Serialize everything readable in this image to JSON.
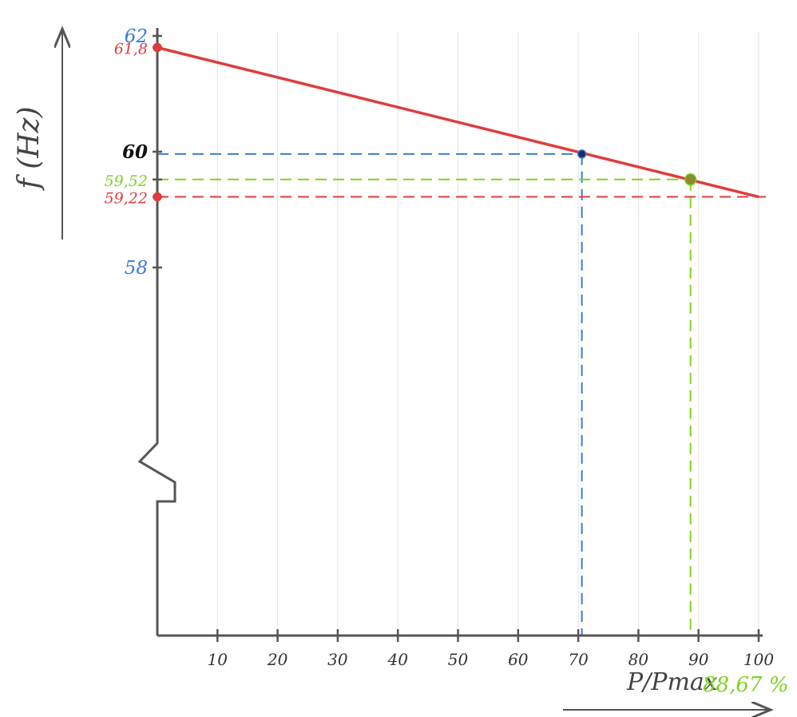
{
  "colors": {
    "axis": "#555555",
    "grid": "#e4e4e4",
    "line": "#e8453c",
    "blue": "#3a7bd5",
    "green": "#7ed321",
    "red": "#e03c3c",
    "black": "#111111"
  },
  "chart_data": {
    "type": "line",
    "ylabel": "f (Hz)",
    "xlabel": "P/Pmax",
    "xlim": [
      0,
      100
    ],
    "ylim": [
      58,
      62
    ],
    "y_axis_break": true,
    "x_ticks": [
      10,
      20,
      30,
      40,
      50,
      60,
      70,
      80,
      90,
      100
    ],
    "y_tick_labels": [
      {
        "value": 62,
        "label": "62",
        "color": "blue"
      },
      {
        "value": 61.8,
        "label": "61,8",
        "color": "red"
      },
      {
        "value": 60,
        "label": "60",
        "color": "black"
      },
      {
        "value": 59.52,
        "label": "59,52",
        "color": "green"
      },
      {
        "value": 59.22,
        "label": "59,22",
        "color": "red"
      },
      {
        "value": 58,
        "label": "58",
        "color": "blue"
      }
    ],
    "series": [
      {
        "values": [
          {
            "x": 0,
            "y": 61.8
          },
          {
            "x": 100,
            "y": 59.22
          }
        ],
        "color": "red"
      }
    ],
    "markers": [
      {
        "x": 70.6,
        "y": 59.96,
        "color": "blue",
        "guide": true
      },
      {
        "x": 88.67,
        "y": 59.52,
        "color": "green",
        "guide": true
      },
      {
        "x": 0,
        "y": 61.8,
        "color": "red",
        "guide": false
      },
      {
        "x": 0,
        "y": 59.22,
        "color": "red",
        "guide": false
      }
    ],
    "annotations": {
      "result": "88,67 %"
    }
  }
}
